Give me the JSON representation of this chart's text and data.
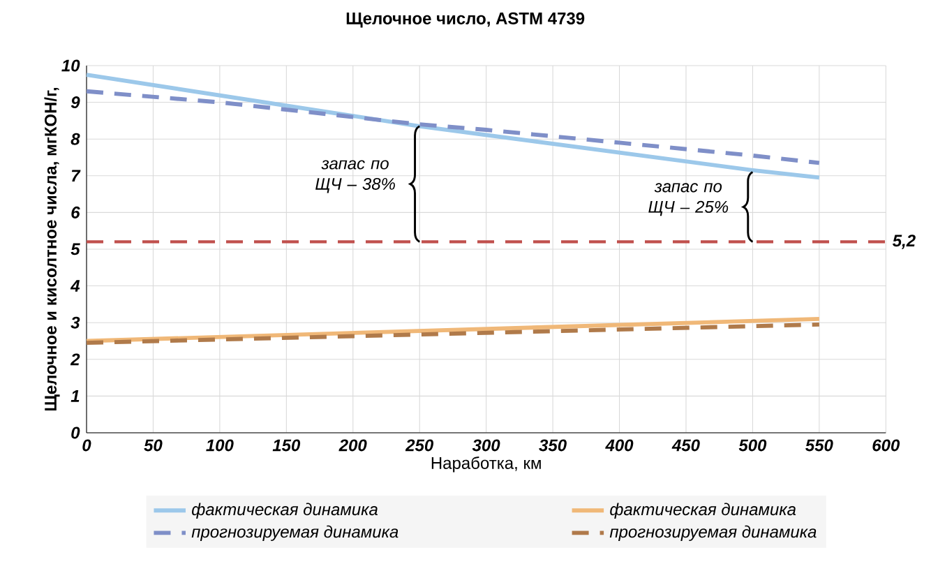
{
  "chart_data": {
    "type": "line",
    "title": "Щелочное число, ASTM 4739",
    "xlabel": "Наработка, км",
    "ylabel": "Щелочное и кисолтное числа, мгКОН/г,",
    "series": [
      {
        "name": "фактическая динамика",
        "color": "#9cc8ea",
        "line_style": "solid",
        "x": [
          0,
          250,
          500,
          550
        ],
        "values": [
          9.75,
          8.35,
          7.15,
          6.95
        ]
      },
      {
        "name": "фактическая динамика",
        "color": "#f0b878",
        "line_style": "solid",
        "x": [
          0,
          550
        ],
        "values": [
          2.5,
          3.1
        ]
      },
      {
        "name": "прогнозируемая динамика",
        "color": "#7f8fc8",
        "line_style": "dashed",
        "x": [
          0,
          100,
          200,
          250,
          300,
          400,
          500,
          550
        ],
        "values": [
          9.3,
          9.0,
          8.6,
          8.4,
          8.25,
          7.9,
          7.55,
          7.35
        ]
      },
      {
        "name": "прогнозируемая динамика",
        "color": "#b07a4a",
        "line_style": "dashed",
        "x": [
          0,
          550
        ],
        "values": [
          2.45,
          2.95
        ]
      }
    ],
    "ref_lines": [
      {
        "axis": "y",
        "value": 5.2,
        "label": "5,2",
        "color": "#c0504d",
        "line_style": "dashed"
      }
    ],
    "annotations": [
      {
        "text": "запас по ЩЧ – 38%",
        "x": 250,
        "y": 8.35
      },
      {
        "text": "запас по ЩЧ – 25%",
        "x": 500,
        "y": 7.1
      }
    ],
    "xlim": [
      0,
      600
    ],
    "xticks": [
      0,
      50,
      100,
      150,
      200,
      250,
      300,
      350,
      400,
      450,
      500,
      550,
      600
    ],
    "ylim": [
      0,
      10
    ],
    "yticks": [
      0,
      1,
      2,
      3,
      4,
      5,
      6,
      7,
      8,
      9,
      10
    ],
    "grid": true,
    "legend": "bottom"
  }
}
